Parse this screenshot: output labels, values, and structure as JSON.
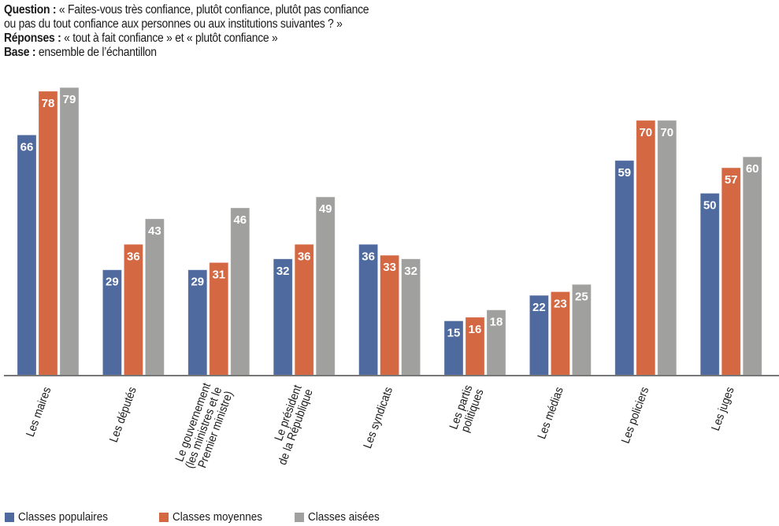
{
  "header": {
    "question_label": "Question :",
    "question_line1": " « Faites-vous très confiance, plutôt confiance, plutôt pas confiance",
    "question_line2": "ou pas du tout confiance aux personnes ou aux institutions suivantes ? »",
    "responses_label": "Réponses :",
    "responses_text": " « tout à fait confiance » et « plutôt confiance »",
    "base_label": "Base :",
    "base_text": " ensemble de l’échantillon"
  },
  "chart_data": {
    "type": "bar",
    "title": "",
    "xlabel": "",
    "ylabel": "",
    "ylim": [
      0,
      80
    ],
    "grid": false,
    "legend_position": "bottom-left",
    "categories": [
      [
        "Les maires"
      ],
      [
        "Les députés"
      ],
      [
        "Le gouvernement",
        "(les ministres et le",
        "Premier ministre)"
      ],
      [
        "Le président",
        "de la République"
      ],
      [
        "Les syndicats"
      ],
      [
        "Les partis",
        "politiques"
      ],
      [
        "Les médias"
      ],
      [
        "Les policiers"
      ],
      [
        "Les juges"
      ]
    ],
    "series": [
      {
        "name": "Classes populaires",
        "color": "#4f6a9f",
        "values": [
          66,
          29,
          29,
          32,
          36,
          15,
          22,
          59,
          50
        ]
      },
      {
        "name": "Classes moyennes",
        "color": "#d46843",
        "values": [
          78,
          36,
          31,
          36,
          33,
          16,
          23,
          70,
          57
        ]
      },
      {
        "name": "Classes aisées",
        "color": "#a0a09f",
        "values": [
          79,
          43,
          46,
          49,
          32,
          18,
          25,
          70,
          60
        ]
      }
    ],
    "data_label_color": "#ffffff",
    "axis_color": "#777777"
  }
}
